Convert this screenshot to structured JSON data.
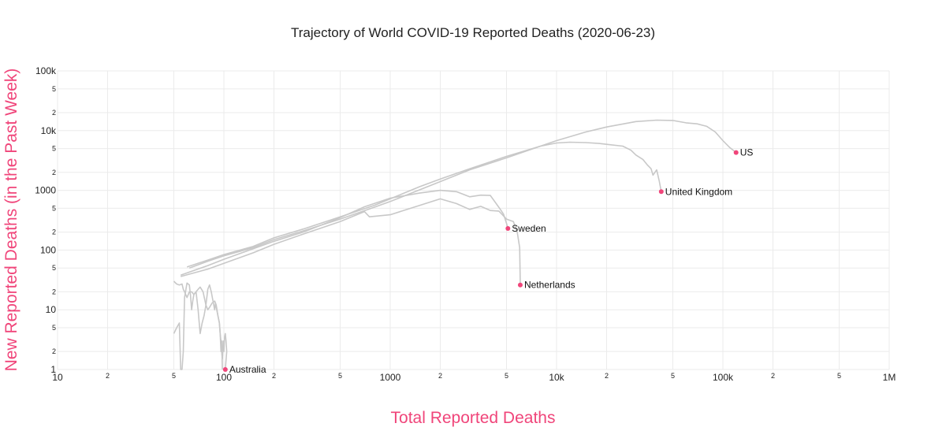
{
  "chart_data": {
    "type": "line",
    "title": "Trajectory of World COVID-19 Reported Deaths (2020-06-23)",
    "xlabel": "Total Reported Deaths",
    "ylabel": "New Reported Deaths (in the Past Week)",
    "x_scale": "log",
    "y_scale": "log",
    "xlim": [
      10,
      1000000
    ],
    "ylim": [
      1,
      100000
    ],
    "grid": true,
    "x_major_ticks": [
      {
        "value": 10,
        "label": "10"
      },
      {
        "value": 100,
        "label": "100"
      },
      {
        "value": 1000,
        "label": "1000"
      },
      {
        "value": 10000,
        "label": "10k"
      },
      {
        "value": 100000,
        "label": "100k"
      },
      {
        "value": 1000000,
        "label": "1M"
      }
    ],
    "x_minor_ticks": [
      {
        "value": 20,
        "label": "2"
      },
      {
        "value": 50,
        "label": "5"
      },
      {
        "value": 200,
        "label": "2"
      },
      {
        "value": 500,
        "label": "5"
      },
      {
        "value": 2000,
        "label": "2"
      },
      {
        "value": 5000,
        "label": "5"
      },
      {
        "value": 20000,
        "label": "2"
      },
      {
        "value": 50000,
        "label": "5"
      },
      {
        "value": 200000,
        "label": "2"
      },
      {
        "value": 500000,
        "label": "5"
      }
    ],
    "y_major_ticks": [
      {
        "value": 1,
        "label": "1"
      },
      {
        "value": 10,
        "label": "10"
      },
      {
        "value": 100,
        "label": "100"
      },
      {
        "value": 1000,
        "label": "1000"
      },
      {
        "value": 10000,
        "label": "10k"
      },
      {
        "value": 100000,
        "label": "100k"
      }
    ],
    "y_minor_ticks": [
      {
        "value": 2,
        "label": "2"
      },
      {
        "value": 5,
        "label": "5"
      },
      {
        "value": 20,
        "label": "2"
      },
      {
        "value": 50,
        "label": "5"
      },
      {
        "value": 200,
        "label": "2"
      },
      {
        "value": 500,
        "label": "5"
      },
      {
        "value": 2000,
        "label": "2"
      },
      {
        "value": 5000,
        "label": "5"
      },
      {
        "value": 20000,
        "label": "2"
      },
      {
        "value": 50000,
        "label": "5"
      }
    ],
    "series": [
      {
        "name": "US",
        "x": [
          62,
          80,
          100,
          150,
          200,
          300,
          500,
          800,
          1000,
          2000,
          3000,
          5000,
          8000,
          10000,
          15000,
          20000,
          30000,
          40000,
          50000,
          60000,
          70000,
          80000,
          90000,
          100000,
          110000,
          120000
        ],
        "y": [
          50,
          65,
          80,
          110,
          150,
          210,
          330,
          520,
          650,
          1400,
          2200,
          3500,
          5500,
          6800,
          9500,
          11500,
          14200,
          15000,
          14800,
          13500,
          13000,
          11800,
          9500,
          6800,
          5200,
          4300
        ],
        "end_label": "US"
      },
      {
        "name": "United Kingdom",
        "x": [
          60,
          80,
          100,
          150,
          200,
          300,
          500,
          800,
          1000,
          1500,
          2000,
          3000,
          5000,
          8000,
          10000,
          12000,
          15000,
          18000,
          20000,
          25000,
          28000,
          30000,
          33000,
          35000,
          37000,
          38000,
          40000,
          41500,
          42600
        ],
        "y": [
          52,
          68,
          84,
          115,
          160,
          225,
          360,
          560,
          720,
          1150,
          1550,
          2300,
          3700,
          5500,
          6200,
          6400,
          6300,
          6100,
          5900,
          5500,
          4700,
          3900,
          3300,
          2700,
          2300,
          1800,
          2200,
          1400,
          950
        ],
        "end_label": "United Kingdom"
      },
      {
        "name": "Sweden",
        "x": [
          55,
          80,
          100,
          150,
          200,
          300,
          500,
          700,
          800,
          1000,
          1500,
          2000,
          2500,
          3000,
          3500,
          4000,
          4500,
          4800,
          5000,
          5100
        ],
        "y": [
          38,
          55,
          70,
          105,
          140,
          200,
          350,
          530,
          600,
          740,
          900,
          1000,
          950,
          780,
          830,
          820,
          520,
          400,
          280,
          230
        ],
        "end_label": "Sweden"
      },
      {
        "name": "Netherlands",
        "x": [
          55,
          80,
          100,
          150,
          200,
          300,
          500,
          700,
          750,
          1000,
          1500,
          2000,
          2500,
          3000,
          3500,
          4000,
          4500,
          5000,
          5500,
          5800,
          6000,
          6050
        ],
        "y": [
          36,
          48,
          60,
          90,
          125,
          185,
          300,
          440,
          360,
          390,
          560,
          720,
          600,
          480,
          540,
          460,
          450,
          330,
          300,
          200,
          110,
          26
        ],
        "end_label": "Netherlands"
      },
      {
        "name": "Australia",
        "x": [
          50,
          52,
          54,
          56,
          57,
          58,
          60,
          62,
          64,
          66,
          68,
          70,
          72,
          75,
          78,
          80,
          82,
          85,
          88,
          90,
          92,
          94,
          95,
          96,
          97,
          98,
          99,
          100,
          101,
          102,
          103,
          104,
          102
        ],
        "y": [
          30,
          27,
          26,
          27,
          22,
          20,
          16,
          20,
          20,
          18,
          20,
          22,
          24,
          20,
          12,
          10,
          11,
          13,
          14,
          12,
          8,
          6,
          4,
          3,
          2,
          1.5,
          3,
          2,
          3.5,
          4,
          3,
          2,
          1
        ],
        "end_label": "Australia"
      },
      {
        "name": "",
        "x": [
          50,
          52,
          54,
          55,
          56,
          57,
          58,
          60,
          62,
          63,
          64,
          65,
          66,
          68,
          70,
          72,
          74,
          76,
          78,
          80,
          82,
          84,
          86,
          88,
          89,
          90,
          92,
          94,
          95,
          96,
          97,
          98
        ],
        "y": [
          4,
          5,
          6,
          1,
          1,
          2,
          16,
          28,
          26,
          17,
          10,
          14,
          18,
          20,
          10,
          4,
          6,
          8,
          12,
          22,
          26,
          20,
          14,
          10,
          13,
          11,
          8,
          6,
          4,
          2,
          3,
          1
        ]
      }
    ],
    "highlight_color": "#f0457a",
    "trace_color": "#c8c8c8",
    "axis_title_color": "#f0457a"
  }
}
